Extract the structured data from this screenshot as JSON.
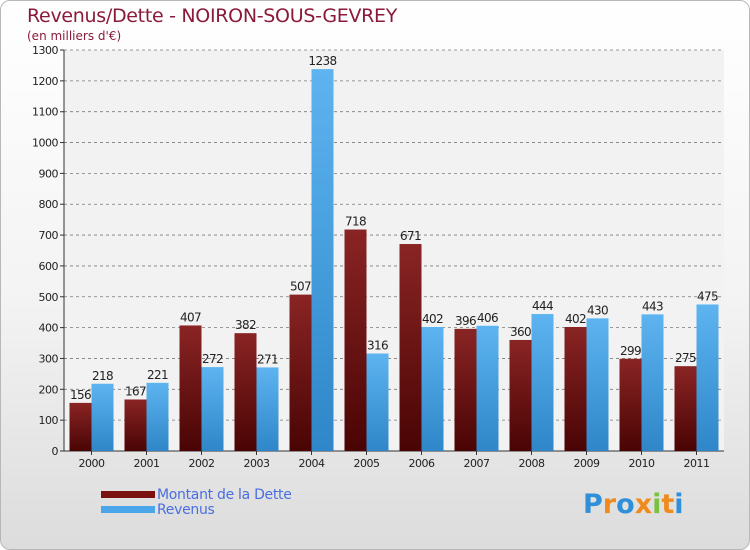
{
  "chart_data": {
    "type": "bar",
    "title": "Revenus/Dette - NOIRON-SOUS-GEVREY",
    "subtitle": "(en milliers d'€)",
    "categories": [
      "2000",
      "2001",
      "2002",
      "2003",
      "2004",
      "2005",
      "2006",
      "2007",
      "2008",
      "2009",
      "2010",
      "2011"
    ],
    "series": [
      {
        "name": "Montant de la Dette",
        "color": "#7a1010",
        "values": [
          156,
          167,
          407,
          382,
          507,
          718,
          671,
          396,
          360,
          402,
          299,
          275
        ]
      },
      {
        "name": "Revenus",
        "color": "#4aa6e8",
        "values": [
          218,
          221,
          272,
          271,
          1238,
          316,
          402,
          406,
          444,
          430,
          443,
          475
        ]
      }
    ],
    "ylim": [
      0,
      1300
    ],
    "yticks": [
      0,
      100,
      200,
      300,
      400,
      500,
      600,
      700,
      800,
      900,
      1000,
      1100,
      1200,
      1300
    ],
    "grid": true,
    "xlabel": "",
    "ylabel": ""
  },
  "logo": {
    "text": "Proxiti",
    "letters": [
      "P",
      "r",
      "o",
      "x",
      "i",
      "t",
      "i"
    ],
    "colors": [
      "#2f8fd8",
      "#f08a1c",
      "#2f8fd8",
      "#f08a1c",
      "#7cc242",
      "#f08a1c",
      "#2f8fd8"
    ]
  }
}
